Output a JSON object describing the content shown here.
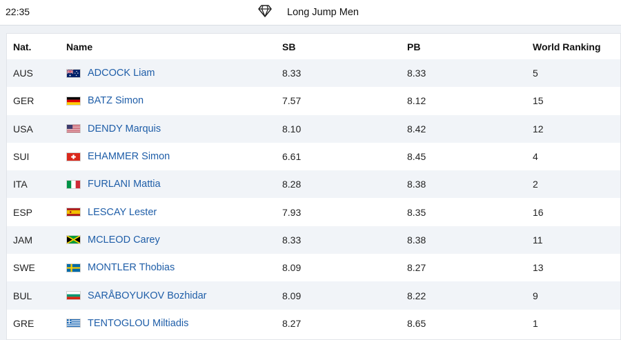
{
  "header": {
    "time": "22:35",
    "title": "Long Jump Men",
    "icon": "diamond-icon"
  },
  "table": {
    "columns": [
      "Nat.",
      "Name",
      "SB",
      "PB",
      "World Ranking"
    ],
    "rows": [
      {
        "nat": "AUS",
        "name": "ADCOCK Liam",
        "sb": "8.33",
        "pb": "8.33",
        "rank": "5",
        "flag": "flag-aus-icon"
      },
      {
        "nat": "GER",
        "name": "BATZ Simon",
        "sb": "7.57",
        "pb": "8.12",
        "rank": "15",
        "flag": "flag-ger-icon"
      },
      {
        "nat": "USA",
        "name": "DENDY Marquis",
        "sb": "8.10",
        "pb": "8.42",
        "rank": "12",
        "flag": "flag-usa-icon"
      },
      {
        "nat": "SUI",
        "name": "EHAMMER Simon",
        "sb": "6.61",
        "pb": "8.45",
        "rank": "4",
        "flag": "flag-sui-icon"
      },
      {
        "nat": "ITA",
        "name": "FURLANI Mattia",
        "sb": "8.28",
        "pb": "8.38",
        "rank": "2",
        "flag": "flag-ita-icon"
      },
      {
        "nat": "ESP",
        "name": "LESCAY Lester",
        "sb": "7.93",
        "pb": "8.35",
        "rank": "16",
        "flag": "flag-esp-icon"
      },
      {
        "nat": "JAM",
        "name": "MCLEOD Carey",
        "sb": "8.33",
        "pb": "8.38",
        "rank": "11",
        "flag": "flag-jam-icon"
      },
      {
        "nat": "SWE",
        "name": "MONTLER Thobias",
        "sb": "8.09",
        "pb": "8.27",
        "rank": "13",
        "flag": "flag-swe-icon"
      },
      {
        "nat": "BUL",
        "name": "SARÅBOYUKOV Bozhidar",
        "sb": "8.09",
        "pb": "8.22",
        "rank": "9",
        "flag": "flag-bul-icon"
      },
      {
        "nat": "GRE",
        "name": "TENTOGLOU Miltiadis",
        "sb": "8.27",
        "pb": "8.65",
        "rank": "1",
        "flag": "flag-gre-icon"
      }
    ]
  },
  "colors": {
    "link": "#1f5ea8",
    "row_alt": "#f1f4f8"
  }
}
